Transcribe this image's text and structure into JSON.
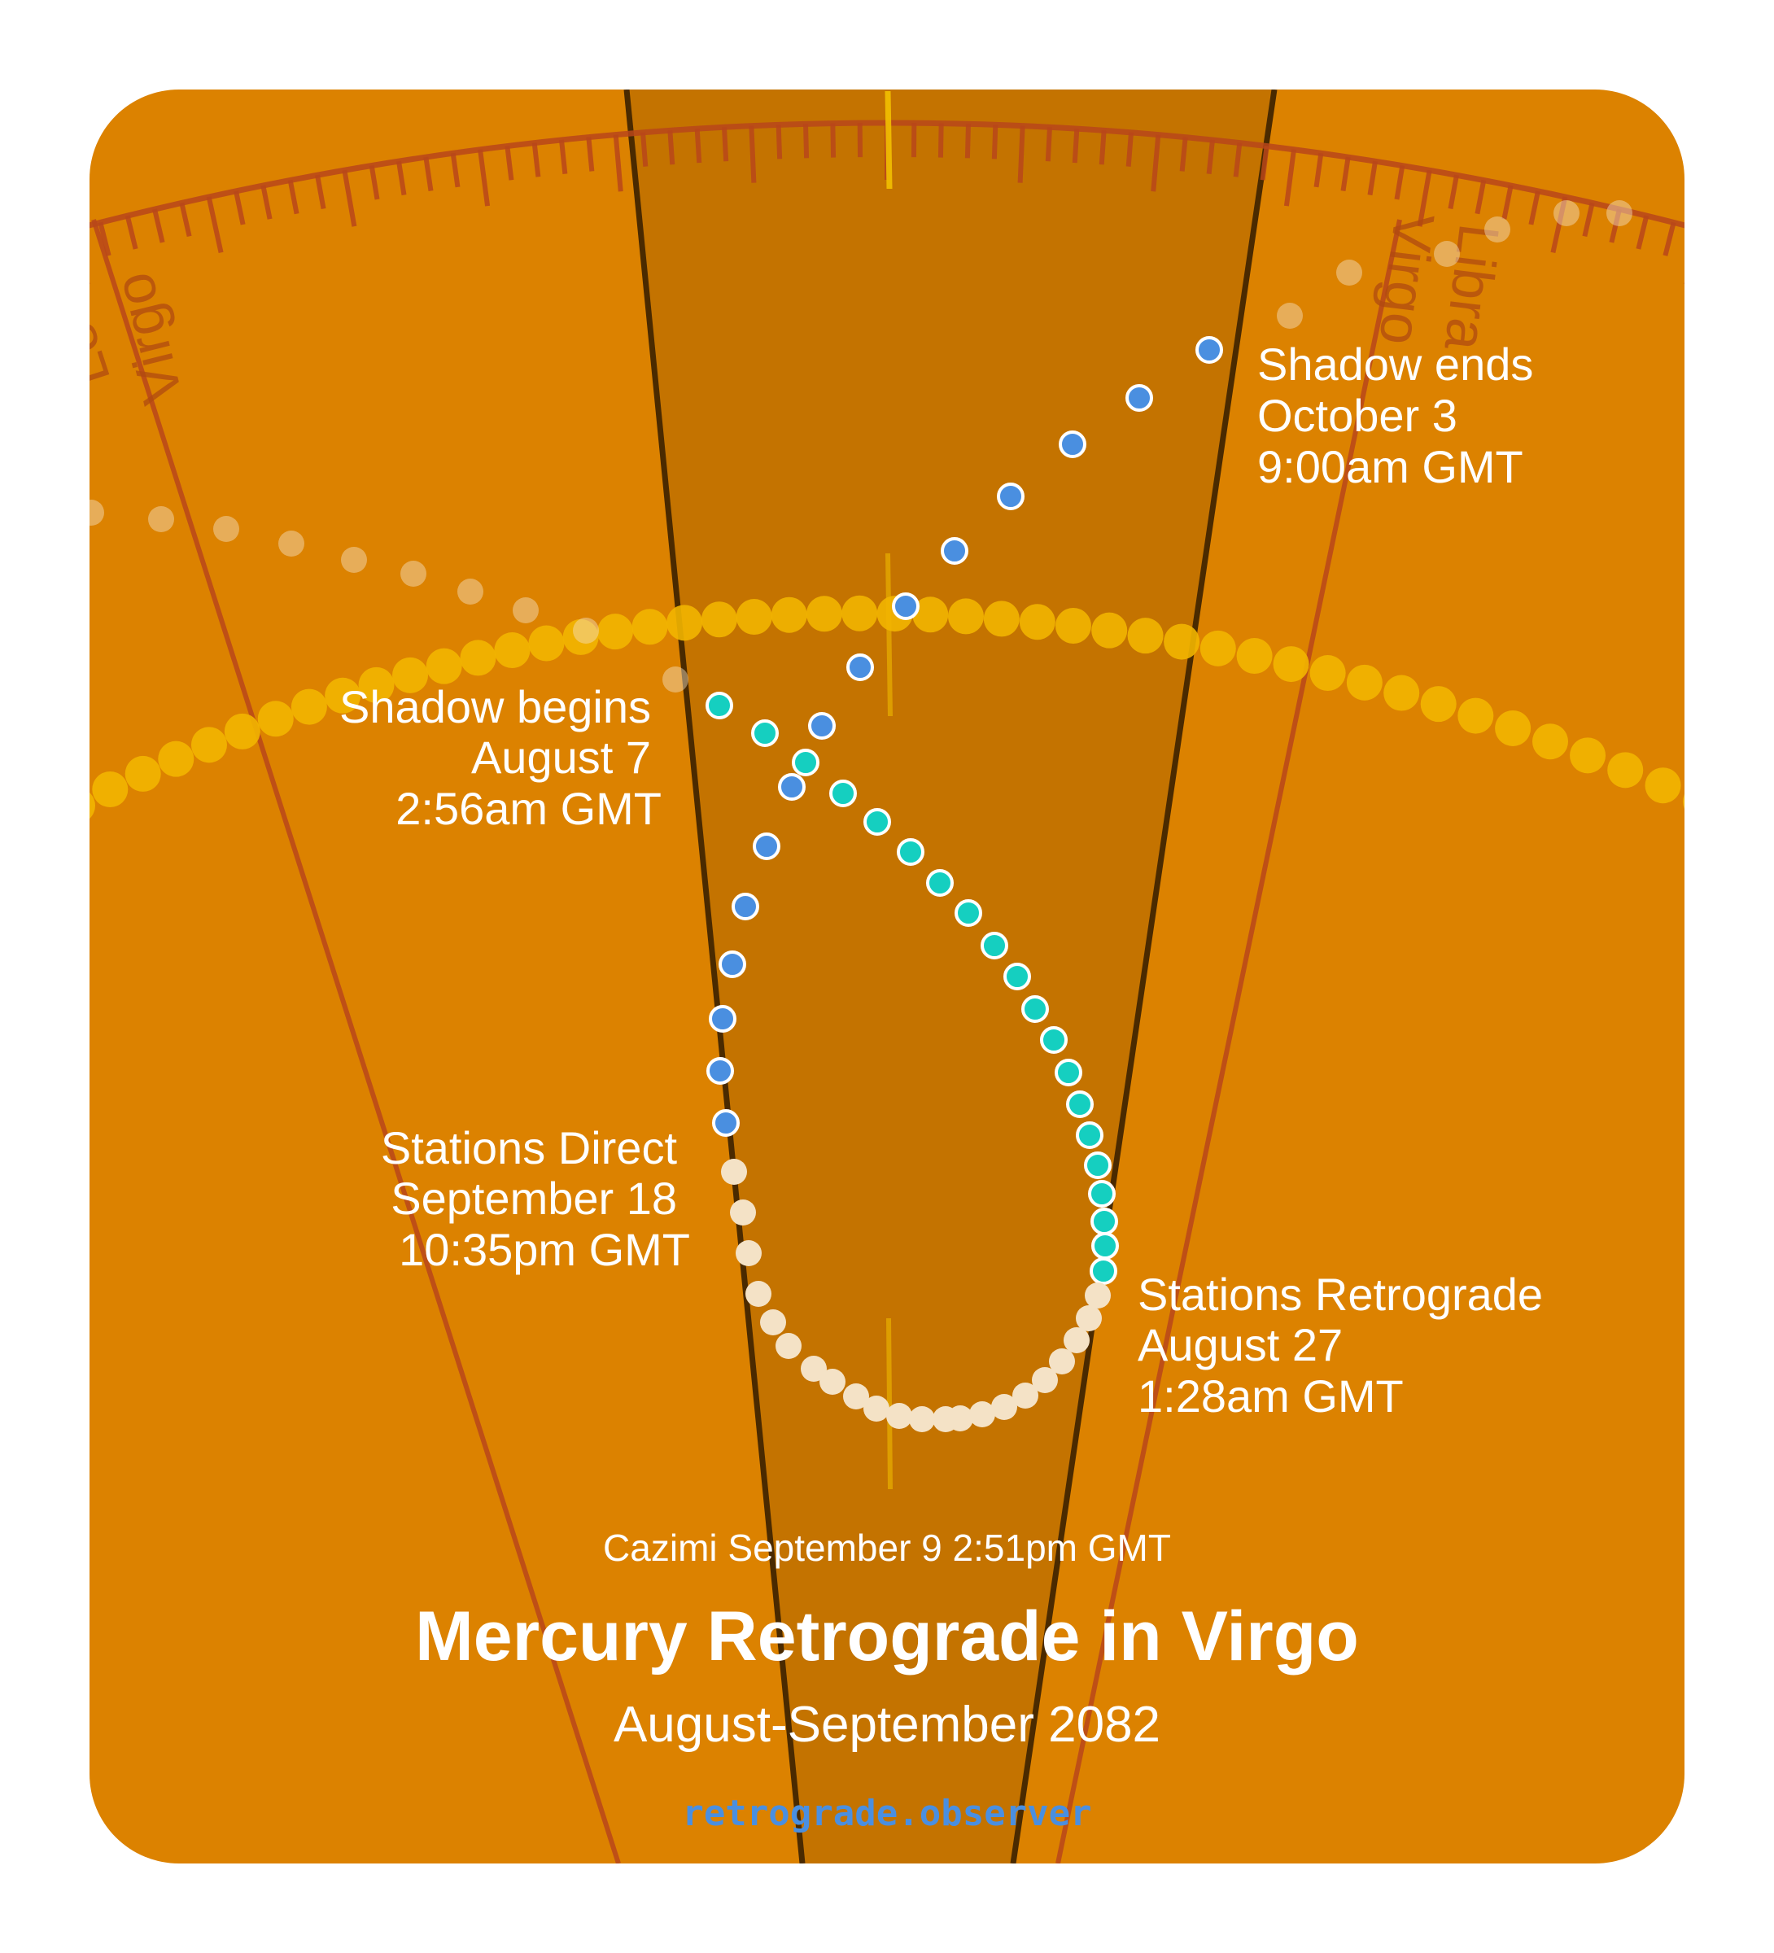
{
  "title": "Mercury Retrograde in Virgo",
  "subtitle": "August-September 2082",
  "cazimi": "Cazimi September 9 2:51pm GMT",
  "footer": "retrograde.observer",
  "zodiac_labels": {
    "leo": "Leo",
    "virgo_left": "Virgo",
    "virgo_right": "Virgo",
    "libra": "Libra"
  },
  "events": {
    "shadow_begins": {
      "line1": "Shadow begins",
      "line2": "August 7",
      "line3": "2:56am GMT"
    },
    "stations_retrograde": {
      "line1": "Stations Retrograde",
      "line2": "August 27",
      "line3": "1:28am GMT"
    },
    "stations_direct": {
      "line1": "Stations Direct",
      "line2": "September 18",
      "line3": "10:35pm GMT"
    },
    "shadow_ends": {
      "line1": "Shadow ends",
      "line2": "October 3",
      "line3": "9:00am GMT"
    }
  },
  "colors": {
    "background": "#dc8200",
    "shadow_zone": "#c47300",
    "zodiac_line": "#b8461a",
    "sun_path": "#f2b500",
    "pre_shadow_dot": "#15cfc0",
    "retrograde_dot": "#f4e2c6",
    "post_shadow_dot": "#4a8fe0",
    "footer": "#4a8fe0"
  },
  "icons": {
    "dots": "circle-marker"
  }
}
